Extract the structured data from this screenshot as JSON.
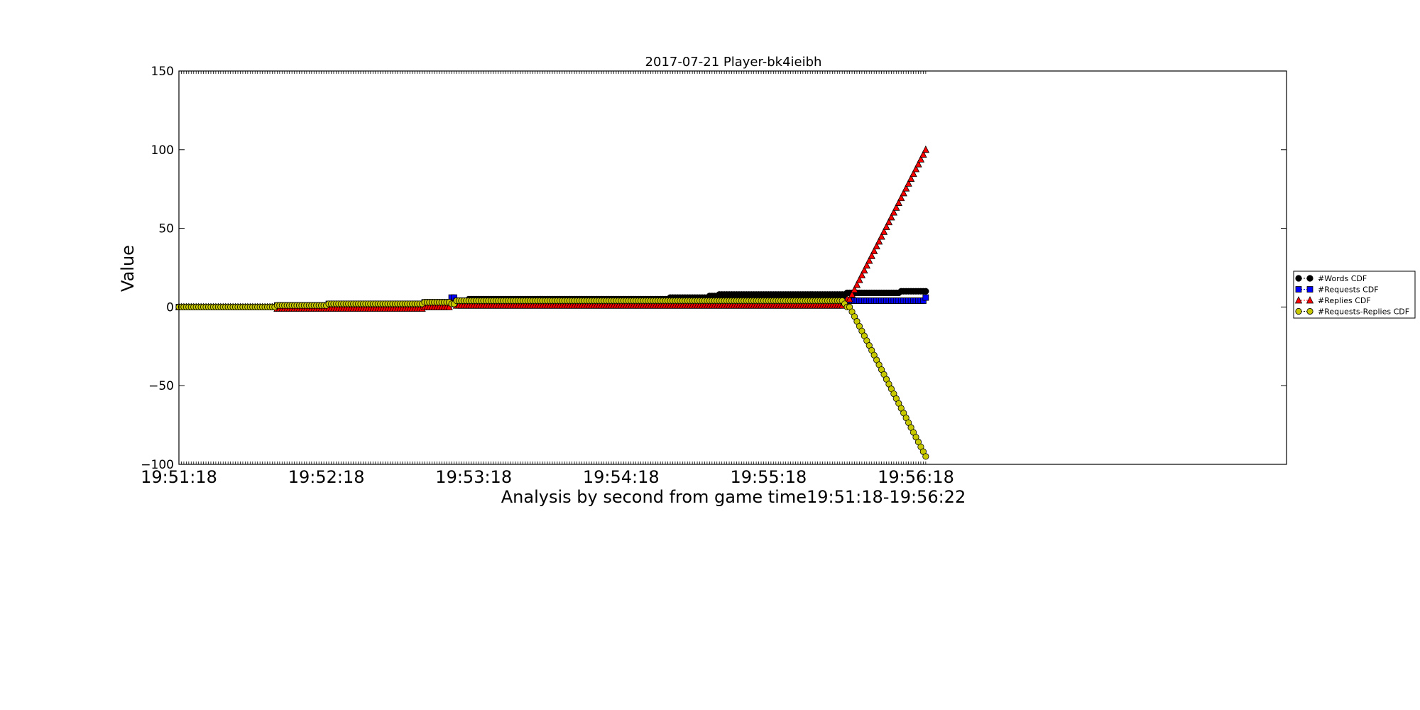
{
  "chart_data": {
    "type": "line",
    "title": "2017-07-21 Player-bk4ieibh",
    "xlabel": "Analysis by second from game time19:51:18-19:56:22",
    "ylabel": "Value",
    "x_start": "19:51:18",
    "x_end": "19:56:22",
    "x_unit": "seconds",
    "xlim_seconds": [
      0,
      350
    ],
    "ylim": [
      -100,
      150
    ],
    "y_ticks": [
      -100,
      -50,
      0,
      50,
      100,
      150
    ],
    "x_ticks": [
      "19:51:18",
      "19:52:18",
      "19:53:18",
      "19:54:18",
      "19:55:18",
      "19:56:18"
    ],
    "x_tick_values": [
      0,
      60,
      120,
      180,
      240,
      300
    ],
    "grid": false,
    "legend_position": "right",
    "series": [
      {
        "name": "#Words CDF",
        "marker": "circle",
        "color": "#000000",
        "steps": [
          [
            0,
            0
          ],
          [
            40,
            1
          ],
          [
            61,
            2
          ],
          [
            100,
            3
          ],
          [
            113,
            4
          ],
          [
            118,
            5
          ],
          [
            128,
            5
          ],
          [
            200,
            6
          ],
          [
            216,
            7
          ],
          [
            220,
            8
          ],
          [
            272,
            9
          ],
          [
            294,
            10
          ],
          [
            304,
            10
          ]
        ]
      },
      {
        "name": "#Requests CDF",
        "marker": "square",
        "color": "#0000ff",
        "steps": [
          [
            0,
            0
          ],
          [
            40,
            1
          ],
          [
            61,
            2
          ],
          [
            100,
            3
          ],
          [
            113,
            4
          ],
          [
            111,
            6
          ],
          [
            304,
            6
          ]
        ]
      },
      {
        "name": "#Replies CDF",
        "marker": "triangle",
        "color": "#ff0000",
        "steps": [
          [
            0,
            0
          ],
          [
            40,
            -1
          ],
          [
            61,
            -1
          ],
          [
            100,
            0
          ],
          [
            113,
            1
          ],
          [
            111,
            3
          ],
          [
            271,
            3
          ],
          [
            272,
            5
          ],
          [
            274,
            8
          ],
          [
            304,
            100
          ]
        ]
      },
      {
        "name": "#Requests-Replies CDF",
        "marker": "circle",
        "color": "#c8c800",
        "steps": [
          [
            0,
            0
          ],
          [
            40,
            1
          ],
          [
            61,
            2
          ],
          [
            100,
            3
          ],
          [
            113,
            4
          ],
          [
            111,
            2
          ],
          [
            271,
            2
          ],
          [
            272,
            0
          ],
          [
            274,
            -3
          ],
          [
            304,
            -95
          ]
        ]
      }
    ]
  }
}
